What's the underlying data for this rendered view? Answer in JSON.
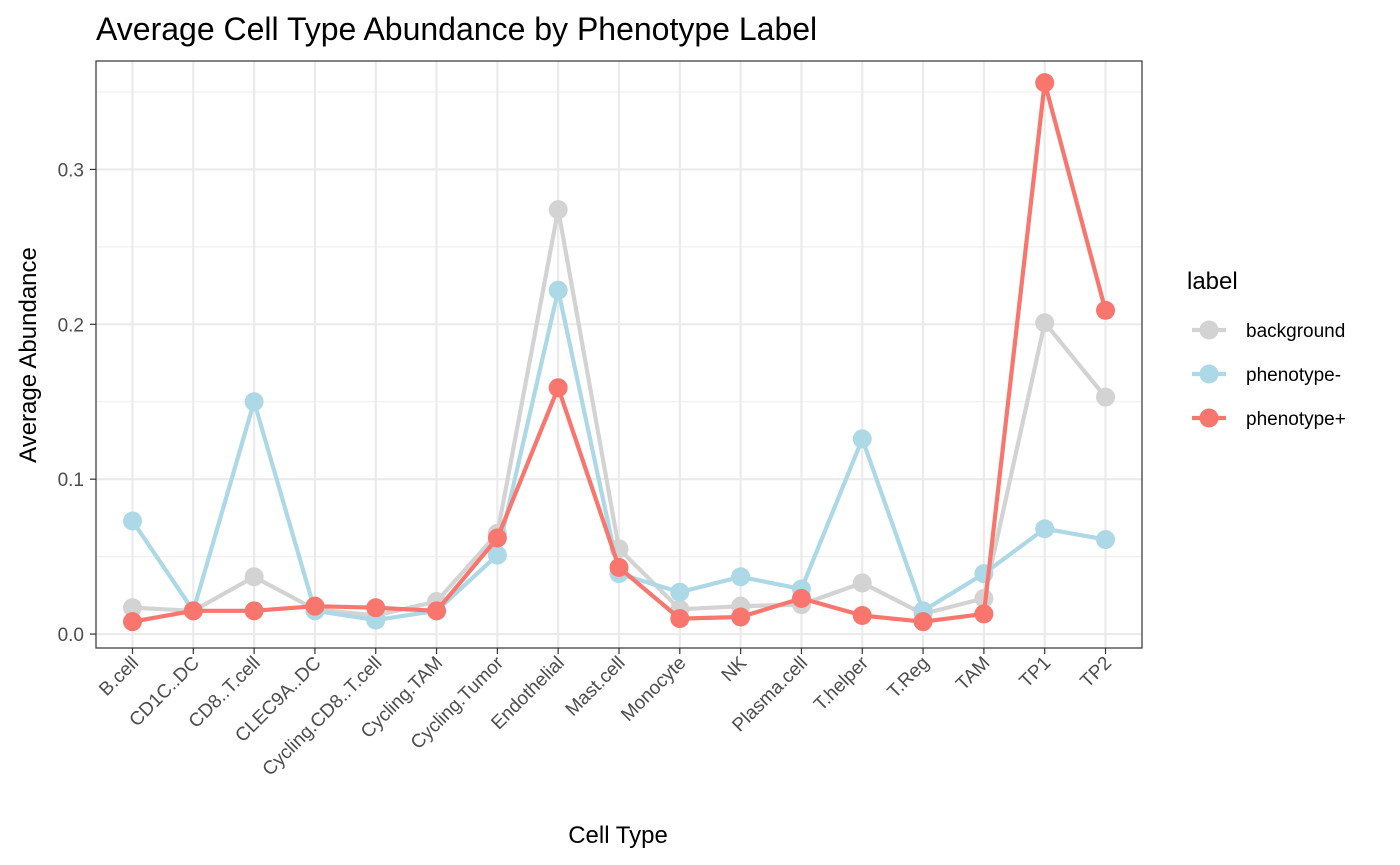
{
  "chart_data": {
    "type": "line",
    "title": "Average Cell Type Abundance by Phenotype Label",
    "xlabel": "Cell Type",
    "ylabel": "Average Abundance",
    "categories": [
      "B.cell",
      "CD1C..DC",
      "CD8..T.cell",
      "CLEC9A..DC",
      "Cycling.CD8..T.cell",
      "Cycling.TAM",
      "Cycling.Tumor",
      "Endothelial",
      "Mast.cell",
      "Monocyte",
      "NK",
      "Plasma.cell",
      "T.helper",
      "T.Reg",
      "TAM",
      "TP1",
      "TP2"
    ],
    "ylim": [
      -0.009,
      0.37
    ],
    "yticks": [
      0.0,
      0.1,
      0.2,
      0.3
    ],
    "ytick_labels": [
      "0.0",
      "0.1",
      "0.2",
      "0.3"
    ],
    "grid": true,
    "legend_title": "label",
    "legend_position": "right",
    "series": [
      {
        "name": "background",
        "color": "#d3d3d3",
        "values": [
          0.017,
          0.015,
          0.037,
          0.016,
          0.012,
          0.021,
          0.065,
          0.274,
          0.055,
          0.016,
          0.018,
          0.019,
          0.033,
          0.013,
          0.023,
          0.201,
          0.153
        ]
      },
      {
        "name": "phenotype-",
        "color": "#add8e6",
        "values": [
          0.073,
          0.015,
          0.15,
          0.015,
          0.009,
          0.015,
          0.051,
          0.222,
          0.039,
          0.027,
          0.037,
          0.029,
          0.126,
          0.015,
          0.039,
          0.068,
          0.061
        ]
      },
      {
        "name": "phenotype+",
        "color": "#f8766d",
        "values": [
          0.008,
          0.015,
          0.015,
          0.018,
          0.017,
          0.015,
          0.062,
          0.159,
          0.043,
          0.01,
          0.011,
          0.023,
          0.012,
          0.008,
          0.013,
          0.356,
          0.209
        ]
      }
    ]
  }
}
